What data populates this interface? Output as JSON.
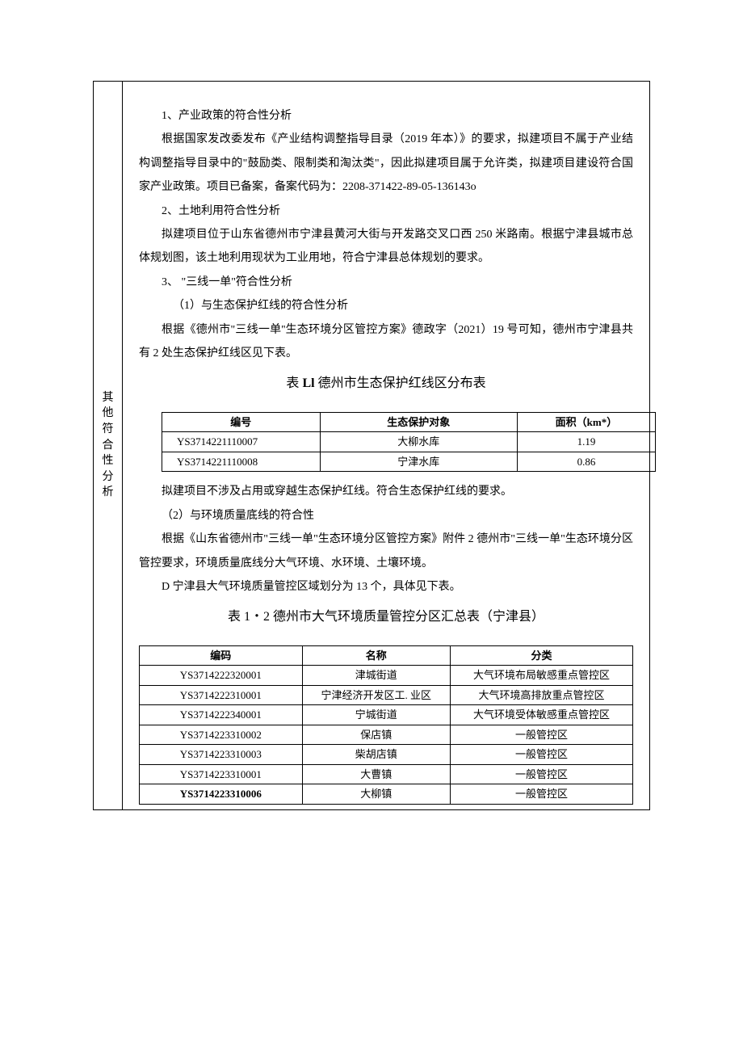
{
  "sideLabel": "其他符合性分析",
  "sections": {
    "s1_title": "1、产业政策的符合性分析",
    "s1_body": "根据国家发改委发布《产业结构调整指导目录（2019 年本）》的要求，拟建项目不属于产业结构调整指导目录中的\"鼓励类、限制类和淘汰类\"，因此拟建项目属于允许类，拟建项目建设符合国家产业政策。项目已备案，备案代码为：2208-371422-89-05-136143o",
    "s2_title": "2、土地利用符合性分析",
    "s2_body": "拟建项目位于山东省德州市宁津县黄河大街与开发路交叉口西 250 米路南。根据宁津县城市总体规划图，该土地利用现状为工业用地，符合宁津县总体规划的要求。",
    "s3_title": "3、 \"三线一单\"符合性分析",
    "s3_sub1_title": "（1）与生态保护红线的符合性分析",
    "s3_sub1_body": "根据《德州市\"三线一单''生态环境分区管控方案》德政字（2021）19 号可知，德州市宁津县共有 2 处生态保护红线区见下表。",
    "s3_sub2_pre": "拟建项目不涉及占用或穿越生态保护红线。符合生态保护红线的要求。",
    "s3_sub2_title": "（2）与环境质量底线的符合性",
    "s3_sub2_body": "根据《山东省德州市\"三线一单\"生态环境分区管控方案》附件 2 德州市\"三线一单\"生态环境分区管控要求，环境质量底线分大气环境、水环境、土壤环境。",
    "s3_sub2_d": "D 宁津县大气环境质量管控区域划分为 13 个，具体见下表。"
  },
  "table1": {
    "caption_prefix": "表 ",
    "caption_bold": "Ll",
    "caption_suffix": " 德州市生态保护红线区分布表",
    "headers": [
      "编号",
      "生态保护对象",
      "面积（km*）"
    ],
    "rows": [
      [
        "YS3714221110007",
        "大柳水库",
        "1.19"
      ],
      [
        "YS3714221110008",
        "宁津水库",
        "0.86"
      ]
    ]
  },
  "table2": {
    "caption": "表 1・2 德州市大气环境质量管控分区汇总表（宁津县）",
    "headers": [
      "编码",
      "名称",
      "分类"
    ],
    "rows": [
      {
        "c": [
          "YS3714222320001",
          "津城街道",
          "大气环境布局敏感重点管控区"
        ],
        "bold": false
      },
      {
        "c": [
          "YS3714222310001",
          "宁津经济开发区工. 业区",
          "大气环境高排放重点管控区"
        ],
        "bold": false
      },
      {
        "c": [
          "YS3714222340001",
          "宁城街道",
          "大气环境受体敏感重点管控区"
        ],
        "bold": false
      },
      {
        "c": [
          "YS3714223310002",
          "保店镇",
          "一般管控区"
        ],
        "bold": false
      },
      {
        "c": [
          "YS3714223310003",
          "柴胡店镇",
          "一般管控区"
        ],
        "bold": false
      },
      {
        "c": [
          "YS3714223310001",
          "大曹镇",
          "一般管控区"
        ],
        "bold": false
      },
      {
        "c": [
          "YS3714223310006",
          "大柳镇",
          "一般管控区"
        ],
        "bold": true
      }
    ],
    "col_widths": [
      "33%",
      "30%",
      "37%"
    ]
  },
  "colors": {
    "text": "#000000",
    "border": "#000000",
    "background": "#ffffff"
  }
}
